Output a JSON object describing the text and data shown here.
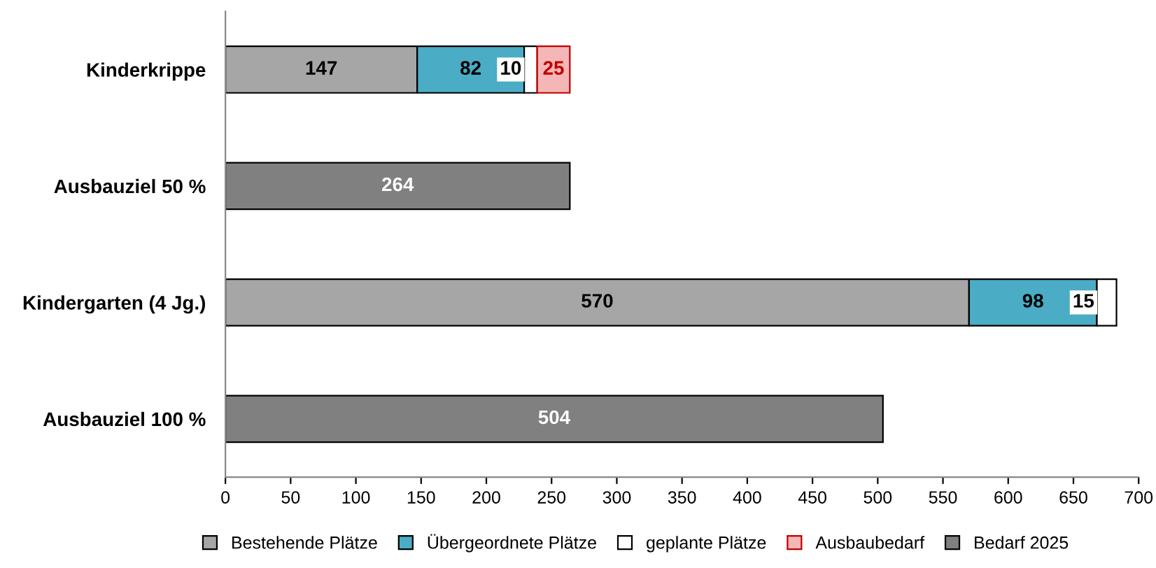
{
  "chart_data": {
    "type": "bar",
    "orientation": "horizontal",
    "stacked": true,
    "data_labels": true,
    "categories": [
      "Kinderkrippe",
      "Ausbauziel 50 %",
      "Kindergarten (4 Jg.)",
      "Ausbauziel 100 %"
    ],
    "series": [
      {
        "name": "Bestehende Plätze",
        "color": "#a6a6a6",
        "values": [
          147,
          null,
          570,
          null
        ]
      },
      {
        "name": "Übergeordnete Plätze",
        "color": "#4bacc6",
        "values": [
          82,
          null,
          98,
          null
        ]
      },
      {
        "name": "geplante Plätze",
        "color": "#ffffff",
        "values": [
          10,
          null,
          15,
          null
        ]
      },
      {
        "name": "Ausbaubedarf",
        "color": "#f4b6b6",
        "values": [
          25,
          null,
          null,
          null
        ]
      },
      {
        "name": "Bedarf 2025",
        "color": "#808080",
        "values": [
          null,
          264,
          null,
          504
        ]
      }
    ],
    "xlim": [
      0,
      700
    ],
    "xticks": [
      0,
      50,
      100,
      150,
      200,
      250,
      300,
      350,
      400,
      450,
      500,
      550,
      600,
      650,
      700
    ],
    "grid": false,
    "legend": "bottom"
  }
}
